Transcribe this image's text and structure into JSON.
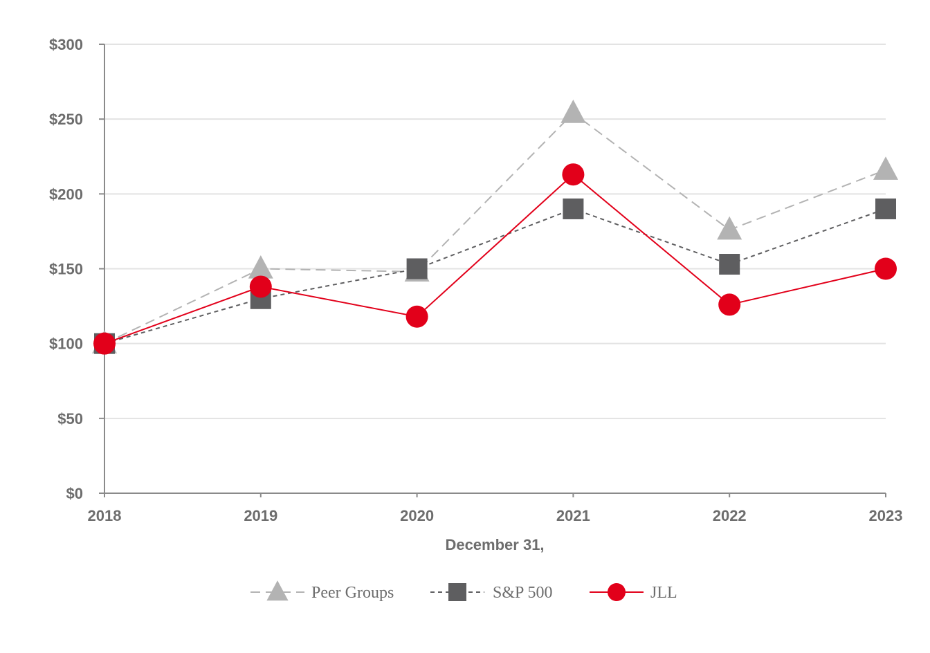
{
  "chart_data": {
    "type": "line",
    "title": "",
    "xlabel": "December 31,",
    "ylabel": "",
    "categories": [
      "2018",
      "2019",
      "2020",
      "2021",
      "2022",
      "2023"
    ],
    "ylim": [
      0,
      300
    ],
    "y_ticks": [
      0,
      50,
      100,
      150,
      200,
      250,
      300
    ],
    "y_tick_labels": [
      "$0",
      "$50",
      "$100",
      "$150",
      "$200",
      "$250",
      "$300"
    ],
    "grid": true,
    "legend_position": "bottom-center",
    "series": [
      {
        "name": "Peer Groups",
        "values": [
          100,
          150,
          148,
          254,
          176,
          216
        ],
        "color": "#b3b3b3",
        "marker": "triangle",
        "line_style": "long-dash"
      },
      {
        "name": "S&P 500",
        "values": [
          100,
          130,
          150,
          190,
          153,
          190
        ],
        "color": "#5e5e60",
        "marker": "square",
        "line_style": "short-dash"
      },
      {
        "name": "JLL",
        "values": [
          100,
          138,
          118,
          213,
          126,
          150
        ],
        "color": "#e2001a",
        "marker": "circle",
        "line_style": "solid"
      }
    ]
  }
}
